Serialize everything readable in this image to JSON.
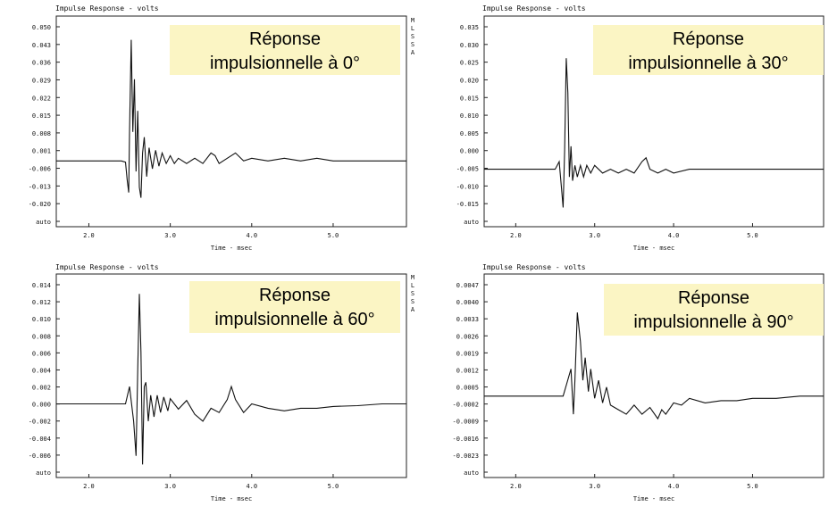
{
  "chart_data": [
    {
      "type": "line",
      "title": "Impulse Response - volts",
      "xlabel": "Time - msec",
      "annotation_lines": [
        "Réponse",
        "impulsionnelle à 0°"
      ],
      "side_label": [
        "M",
        "L",
        "S",
        "S",
        "A"
      ],
      "xlim": [
        1.6,
        5.9
      ],
      "x_ticks": [
        "2.0",
        "3.0",
        "4.0",
        "5.0"
      ],
      "ylim": [
        -0.026,
        0.054
      ],
      "y_ticks": [
        "0.050",
        "0.043",
        "0.036",
        "0.029",
        "0.022",
        "0.015",
        "0.008",
        "0.001",
        "-0.006",
        "-0.013",
        "-0.020",
        "auto"
      ],
      "series": [
        {
          "x": [
            1.6,
            2.4,
            2.45,
            2.47,
            2.49,
            2.5,
            2.52,
            2.54,
            2.56,
            2.58,
            2.6,
            2.62,
            2.64,
            2.66,
            2.68,
            2.71,
            2.74,
            2.78,
            2.82,
            2.86,
            2.9,
            2.95,
            3.0,
            3.05,
            3.1,
            3.2,
            3.3,
            3.4,
            3.5,
            3.55,
            3.6,
            3.7,
            3.8,
            3.9,
            4.0,
            4.2,
            4.4,
            4.6,
            4.8,
            5.0,
            5.3,
            5.6,
            5.9
          ],
          "y": [
            -0.001,
            -0.001,
            -0.0015,
            -0.008,
            -0.013,
            0.01,
            0.045,
            0.01,
            0.03,
            -0.005,
            0.018,
            -0.011,
            -0.015,
            0.002,
            0.008,
            -0.007,
            0.004,
            -0.004,
            0.003,
            -0.003,
            0.002,
            -0.002,
            0.001,
            -0.002,
            0.0,
            -0.002,
            0.0,
            -0.002,
            0.002,
            0.001,
            -0.002,
            0.0,
            0.002,
            -0.001,
            0.0,
            -0.001,
            0.0,
            -0.001,
            0.0,
            -0.001,
            -0.001,
            -0.001,
            -0.001
          ]
        }
      ]
    },
    {
      "type": "line",
      "title": "Impulse Response - volts",
      "xlabel": "Time - msec",
      "annotation_lines": [
        "Réponse",
        "impulsionnelle à 30°"
      ],
      "side_label": [],
      "xlim": [
        1.6,
        5.9
      ],
      "x_ticks": [
        "2.0",
        "3.0",
        "4.0",
        "5.0"
      ],
      "ylim": [
        -0.015,
        0.04
      ],
      "y_ticks": [
        "0.035",
        "0.030",
        "0.025",
        "0.020",
        "0.015",
        "0.010",
        "0.005",
        "0.000",
        "-0.005",
        "-0.010",
        "-0.015",
        "auto"
      ],
      "series": [
        {
          "x": [
            1.6,
            2.5,
            2.55,
            2.58,
            2.6,
            2.62,
            2.64,
            2.66,
            2.68,
            2.7,
            2.72,
            2.75,
            2.78,
            2.82,
            2.86,
            2.9,
            2.95,
            3.0,
            3.1,
            3.2,
            3.3,
            3.4,
            3.5,
            3.6,
            3.65,
            3.7,
            3.8,
            3.9,
            4.0,
            4.2,
            4.4,
            4.6,
            4.8,
            5.0,
            5.3,
            5.6,
            5.9
          ],
          "y": [
            0.0,
            0.0,
            0.002,
            -0.005,
            -0.01,
            0.005,
            0.029,
            0.02,
            -0.002,
            0.006,
            -0.003,
            0.001,
            -0.002,
            0.001,
            -0.002,
            0.001,
            -0.001,
            0.001,
            -0.001,
            0.0,
            -0.001,
            0.0,
            -0.001,
            0.002,
            0.003,
            0.0,
            -0.001,
            0.0,
            -0.001,
            0.0,
            0.0,
            0.0,
            0.0,
            0.0,
            0.0,
            0.0,
            0.0
          ]
        }
      ]
    },
    {
      "type": "line",
      "title": "Impulse Response - volts",
      "xlabel": "Time - msec",
      "annotation_lines": [
        "Réponse",
        "impulsionnelle à 60°"
      ],
      "side_label": [
        "M",
        "L",
        "S",
        "S",
        "A"
      ],
      "xlim": [
        1.6,
        5.9
      ],
      "x_ticks": [
        "2.0",
        "3.0",
        "4.0",
        "5.0"
      ],
      "ylim": [
        -0.0085,
        0.015
      ],
      "y_ticks": [
        "0.014",
        "0.012",
        "0.010",
        "0.008",
        "0.006",
        "0.004",
        "0.002",
        "0.000",
        "-0.002",
        "-0.004",
        "-0.006",
        "auto"
      ],
      "series": [
        {
          "x": [
            1.6,
            2.45,
            2.5,
            2.55,
            2.58,
            2.6,
            2.62,
            2.64,
            2.66,
            2.68,
            2.7,
            2.73,
            2.76,
            2.8,
            2.84,
            2.88,
            2.92,
            2.97,
            3.0,
            3.1,
            3.2,
            3.3,
            3.4,
            3.5,
            3.6,
            3.7,
            3.75,
            3.8,
            3.9,
            4.0,
            4.2,
            4.4,
            4.6,
            4.8,
            5.0,
            5.3,
            5.6,
            5.9
          ],
          "y": [
            0.0,
            0.0,
            0.002,
            -0.002,
            -0.006,
            0.004,
            0.0127,
            0.006,
            -0.007,
            0.002,
            0.0025,
            -0.002,
            0.001,
            -0.0015,
            0.001,
            -0.001,
            0.0008,
            -0.0008,
            0.0006,
            -0.0006,
            0.0004,
            -0.0012,
            -0.002,
            -0.0005,
            -0.001,
            0.0005,
            0.002,
            0.0005,
            -0.001,
            0.0,
            -0.0005,
            -0.0008,
            -0.0005,
            -0.0005,
            -0.0003,
            -0.0002,
            0.0,
            0.0
          ]
        }
      ]
    },
    {
      "type": "line",
      "title": "Impulse Response - volts",
      "xlabel": "Time - msec",
      "annotation_lines": [
        "Réponse",
        "impulsionnelle à 90°"
      ],
      "side_label": [],
      "xlim": [
        1.6,
        5.9
      ],
      "x_ticks": [
        "2.0",
        "3.0",
        "4.0",
        "5.0"
      ],
      "ylim": [
        -0.0038,
        0.0052
      ],
      "y_ticks": [
        "0.0047",
        "0.0040",
        "0.0033",
        "0.0026",
        "0.0019",
        "0.0012",
        "0.0005",
        "-0.0002",
        "-0.0009",
        "-0.0016",
        "-0.0023",
        "auto"
      ],
      "series": [
        {
          "x": [
            1.6,
            2.6,
            2.65,
            2.7,
            2.73,
            2.75,
            2.78,
            2.82,
            2.85,
            2.88,
            2.92,
            2.95,
            3.0,
            3.05,
            3.1,
            3.15,
            3.2,
            3.3,
            3.4,
            3.5,
            3.6,
            3.7,
            3.8,
            3.85,
            3.9,
            4.0,
            4.1,
            4.2,
            4.4,
            4.6,
            4.8,
            5.0,
            5.3,
            5.6,
            5.9
          ],
          "y": [
            -0.0002,
            -0.0002,
            0.0004,
            0.001,
            -0.001,
            0.0005,
            0.0035,
            0.0022,
            0.0005,
            0.0015,
            0.0,
            0.001,
            -0.0003,
            0.0005,
            -0.0005,
            0.0002,
            -0.0006,
            -0.0008,
            -0.001,
            -0.0006,
            -0.001,
            -0.0007,
            -0.0012,
            -0.0008,
            -0.001,
            -0.0005,
            -0.0006,
            -0.0003,
            -0.0005,
            -0.0004,
            -0.0004,
            -0.0003,
            -0.0003,
            -0.0002,
            -0.0002
          ]
        }
      ]
    }
  ]
}
